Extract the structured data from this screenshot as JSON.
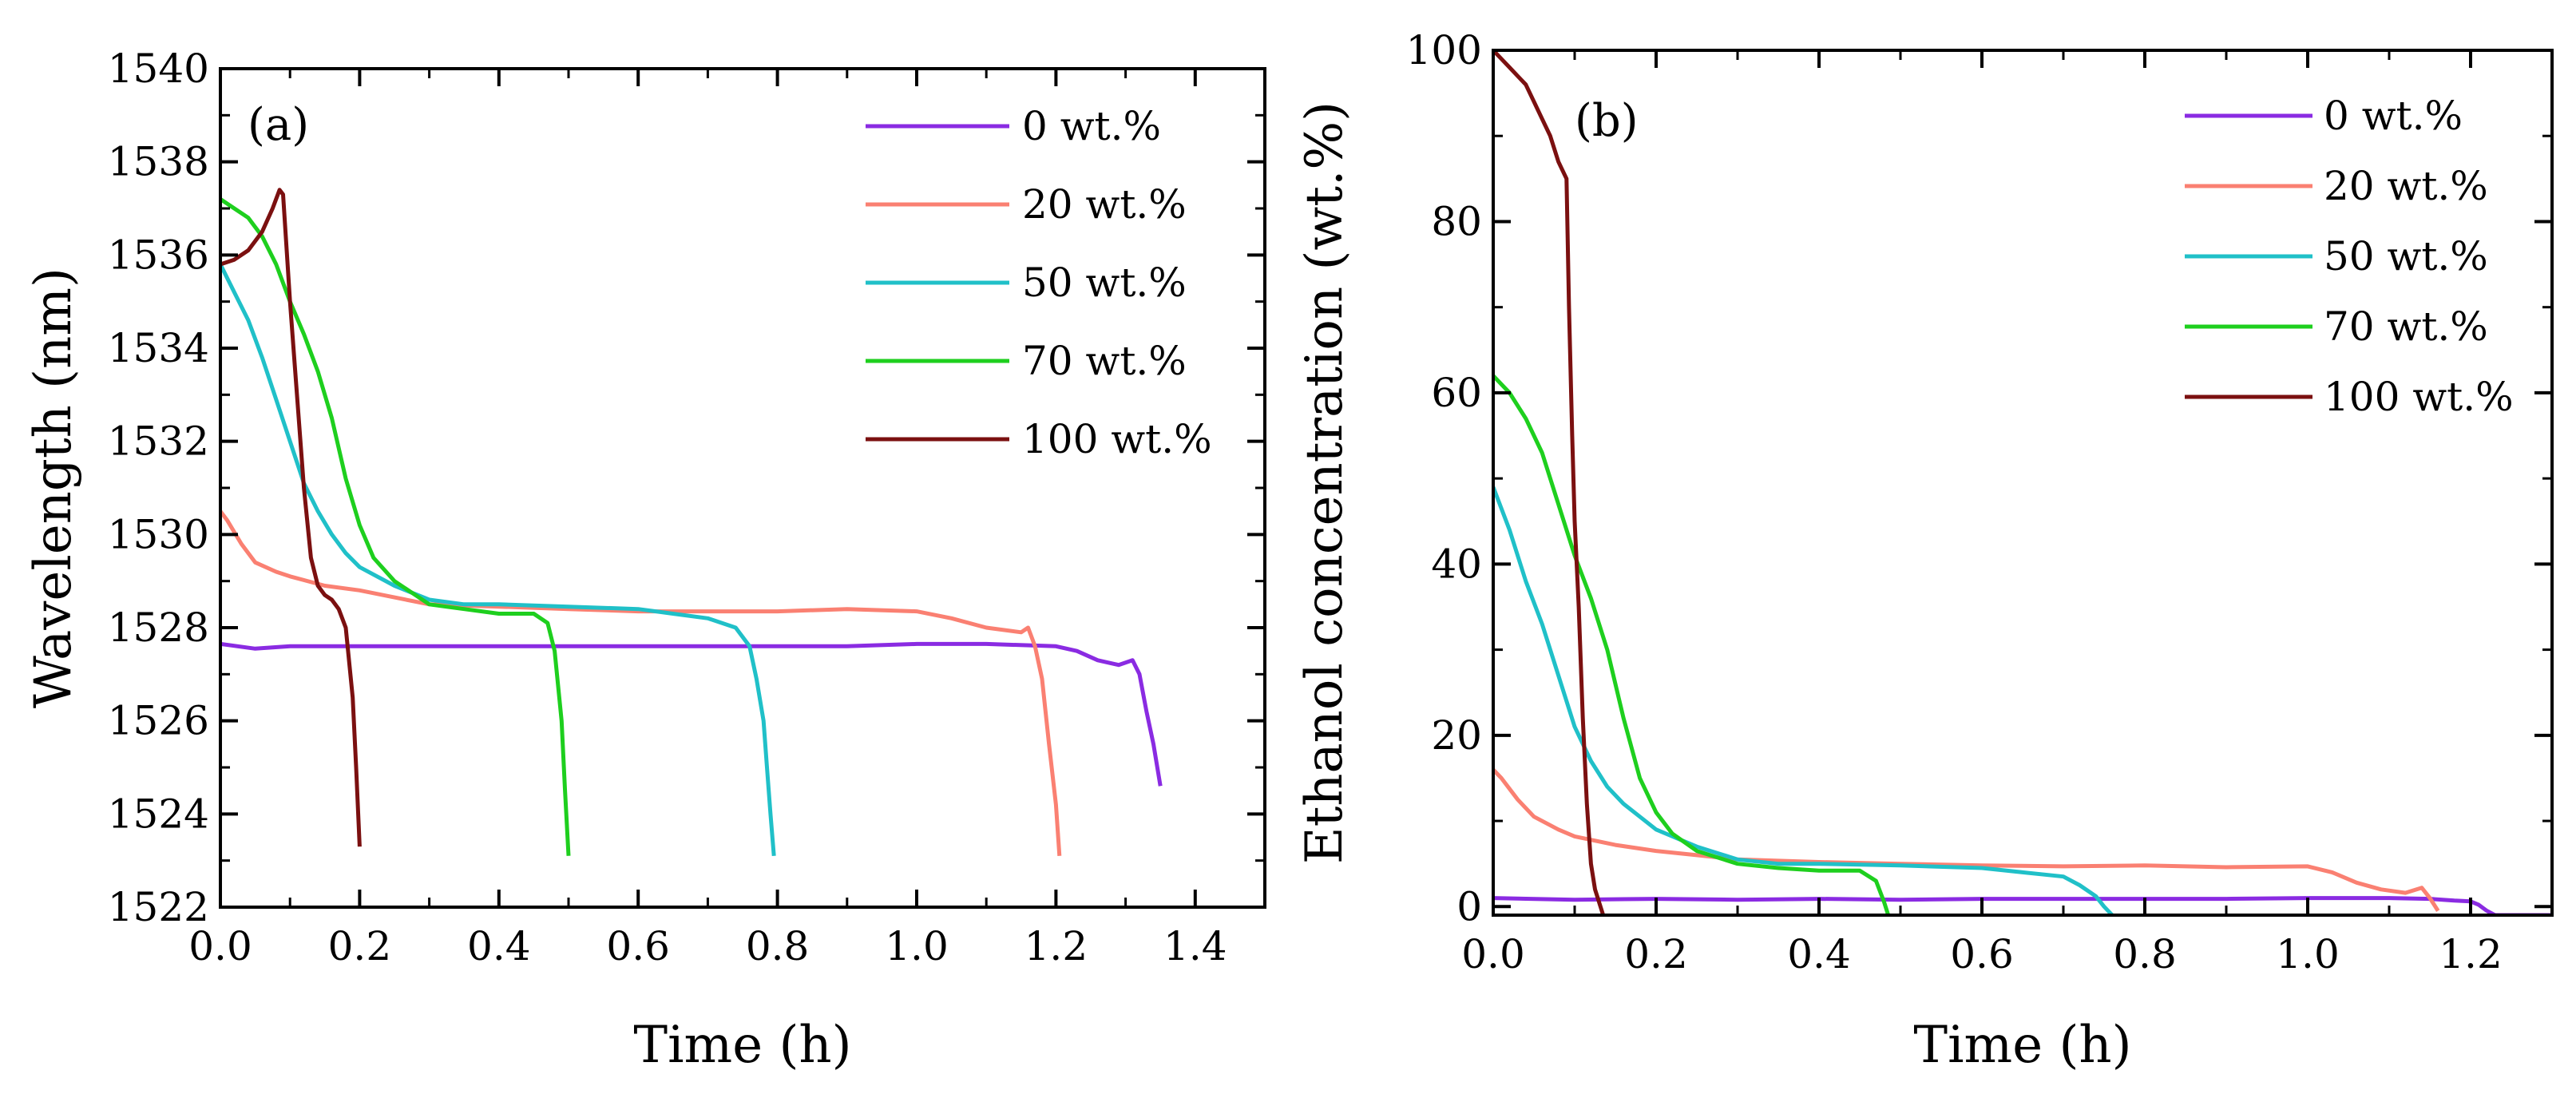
{
  "chart_data": [
    {
      "type": "line",
      "panel_label": "(a)",
      "xlabel": "Time (h)",
      "ylabel": "Wavelength (nm)",
      "xlim": [
        0.0,
        1.5
      ],
      "ylim": [
        1522,
        1540
      ],
      "x_ticks": [
        "0.0",
        "0.2",
        "0.4",
        "0.6",
        "0.8",
        "1.0",
        "1.2",
        "1.4"
      ],
      "y_ticks": [
        "1522",
        "1524",
        "1526",
        "1528",
        "1530",
        "1532",
        "1534",
        "1536",
        "1538",
        "1540"
      ],
      "legend_position": "top-right",
      "series": [
        {
          "name": "0 wt.%",
          "color": "#8a2be2",
          "points": [
            [
              0.0,
              1527.65
            ],
            [
              0.05,
              1527.55
            ],
            [
              0.1,
              1527.6
            ],
            [
              0.2,
              1527.6
            ],
            [
              0.3,
              1527.6
            ],
            [
              0.4,
              1527.6
            ],
            [
              0.5,
              1527.6
            ],
            [
              0.6,
              1527.6
            ],
            [
              0.7,
              1527.6
            ],
            [
              0.8,
              1527.6
            ],
            [
              0.9,
              1527.6
            ],
            [
              1.0,
              1527.65
            ],
            [
              1.1,
              1527.65
            ],
            [
              1.2,
              1527.6
            ],
            [
              1.23,
              1527.5
            ],
            [
              1.26,
              1527.3
            ],
            [
              1.29,
              1527.2
            ],
            [
              1.31,
              1527.3
            ],
            [
              1.32,
              1527.0
            ],
            [
              1.33,
              1526.2
            ],
            [
              1.34,
              1525.5
            ],
            [
              1.35,
              1524.6
            ]
          ]
        },
        {
          "name": "20 wt.%",
          "color": "#fa8072",
          "points": [
            [
              0.0,
              1530.5
            ],
            [
              0.01,
              1530.3
            ],
            [
              0.03,
              1529.8
            ],
            [
              0.05,
              1529.4
            ],
            [
              0.08,
              1529.2
            ],
            [
              0.1,
              1529.1
            ],
            [
              0.15,
              1528.9
            ],
            [
              0.2,
              1528.8
            ],
            [
              0.25,
              1528.65
            ],
            [
              0.3,
              1528.5
            ],
            [
              0.4,
              1528.45
            ],
            [
              0.5,
              1528.4
            ],
            [
              0.6,
              1528.35
            ],
            [
              0.7,
              1528.35
            ],
            [
              0.8,
              1528.35
            ],
            [
              0.9,
              1528.4
            ],
            [
              1.0,
              1528.35
            ],
            [
              1.05,
              1528.2
            ],
            [
              1.1,
              1528.0
            ],
            [
              1.15,
              1527.9
            ],
            [
              1.16,
              1528.0
            ],
            [
              1.17,
              1527.6
            ],
            [
              1.18,
              1526.9
            ],
            [
              1.19,
              1525.5
            ],
            [
              1.2,
              1524.2
            ],
            [
              1.205,
              1523.1
            ]
          ]
        },
        {
          "name": "50 wt.%",
          "color": "#20c0c8",
          "points": [
            [
              0.0,
              1535.8
            ],
            [
              0.02,
              1535.2
            ],
            [
              0.04,
              1534.6
            ],
            [
              0.06,
              1533.8
            ],
            [
              0.08,
              1532.9
            ],
            [
              0.1,
              1532.0
            ],
            [
              0.12,
              1531.1
            ],
            [
              0.14,
              1530.5
            ],
            [
              0.16,
              1530.0
            ],
            [
              0.18,
              1529.6
            ],
            [
              0.2,
              1529.3
            ],
            [
              0.25,
              1528.9
            ],
            [
              0.3,
              1528.6
            ],
            [
              0.35,
              1528.5
            ],
            [
              0.4,
              1528.5
            ],
            [
              0.5,
              1528.45
            ],
            [
              0.6,
              1528.4
            ],
            [
              0.65,
              1528.3
            ],
            [
              0.7,
              1528.2
            ],
            [
              0.74,
              1528.0
            ],
            [
              0.76,
              1527.6
            ],
            [
              0.77,
              1526.9
            ],
            [
              0.78,
              1526.0
            ],
            [
              0.785,
              1525.0
            ],
            [
              0.79,
              1524.0
            ],
            [
              0.795,
              1523.1
            ]
          ]
        },
        {
          "name": "70 wt.%",
          "color": "#1ecf1e",
          "points": [
            [
              0.0,
              1537.2
            ],
            [
              0.02,
              1537.0
            ],
            [
              0.04,
              1536.8
            ],
            [
              0.06,
              1536.4
            ],
            [
              0.08,
              1535.8
            ],
            [
              0.1,
              1535.0
            ],
            [
              0.12,
              1534.3
            ],
            [
              0.14,
              1533.5
            ],
            [
              0.16,
              1532.5
            ],
            [
              0.18,
              1531.2
            ],
            [
              0.2,
              1530.2
            ],
            [
              0.22,
              1529.5
            ],
            [
              0.25,
              1529.0
            ],
            [
              0.3,
              1528.5
            ],
            [
              0.35,
              1528.4
            ],
            [
              0.4,
              1528.3
            ],
            [
              0.45,
              1528.3
            ],
            [
              0.47,
              1528.1
            ],
            [
              0.48,
              1527.5
            ],
            [
              0.49,
              1526.0
            ],
            [
              0.495,
              1524.5
            ],
            [
              0.5,
              1523.1
            ]
          ]
        },
        {
          "name": "100 wt.%",
          "color": "#7b1010",
          "points": [
            [
              0.0,
              1535.8
            ],
            [
              0.02,
              1535.9
            ],
            [
              0.04,
              1536.1
            ],
            [
              0.06,
              1536.5
            ],
            [
              0.075,
              1537.0
            ],
            [
              0.085,
              1537.4
            ],
            [
              0.09,
              1537.3
            ],
            [
              0.1,
              1535.0
            ],
            [
              0.11,
              1533.0
            ],
            [
              0.12,
              1531.0
            ],
            [
              0.13,
              1529.5
            ],
            [
              0.14,
              1528.9
            ],
            [
              0.15,
              1528.7
            ],
            [
              0.16,
              1528.6
            ],
            [
              0.17,
              1528.4
            ],
            [
              0.18,
              1528.0
            ],
            [
              0.19,
              1526.5
            ],
            [
              0.195,
              1525.0
            ],
            [
              0.2,
              1523.3
            ]
          ]
        }
      ]
    },
    {
      "type": "line",
      "panel_label": "(b)",
      "xlabel": "Time (h)",
      "ylabel": "Ethanol concentration (wt.%)",
      "xlim": [
        0.0,
        1.3
      ],
      "ylim": [
        -1,
        100
      ],
      "x_ticks": [
        "0.0",
        "0.2",
        "0.4",
        "0.6",
        "0.8",
        "1.0",
        "1.2"
      ],
      "y_ticks": [
        "0",
        "20",
        "40",
        "60",
        "80",
        "100"
      ],
      "legend_position": "top-right",
      "series": [
        {
          "name": "0 wt.%",
          "color": "#8a2be2",
          "points": [
            [
              0.0,
              1.0
            ],
            [
              0.1,
              0.8
            ],
            [
              0.2,
              0.9
            ],
            [
              0.3,
              0.8
            ],
            [
              0.4,
              0.9
            ],
            [
              0.5,
              0.8
            ],
            [
              0.6,
              0.9
            ],
            [
              0.7,
              0.9
            ],
            [
              0.8,
              0.9
            ],
            [
              0.9,
              0.9
            ],
            [
              1.0,
              1.0
            ],
            [
              1.1,
              1.0
            ],
            [
              1.15,
              0.9
            ],
            [
              1.18,
              0.7
            ],
            [
              1.2,
              0.6
            ],
            [
              1.21,
              0.2
            ],
            [
              1.22,
              -0.5
            ],
            [
              1.23,
              -1.0
            ],
            [
              1.3,
              -1.0
            ]
          ]
        },
        {
          "name": "20 wt.%",
          "color": "#fa8072",
          "points": [
            [
              0.0,
              16.0
            ],
            [
              0.01,
              15.0
            ],
            [
              0.03,
              12.5
            ],
            [
              0.05,
              10.5
            ],
            [
              0.08,
              9.0
            ],
            [
              0.1,
              8.2
            ],
            [
              0.15,
              7.2
            ],
            [
              0.2,
              6.5
            ],
            [
              0.25,
              6.0
            ],
            [
              0.3,
              5.5
            ],
            [
              0.4,
              5.2
            ],
            [
              0.5,
              5.0
            ],
            [
              0.6,
              4.8
            ],
            [
              0.7,
              4.7
            ],
            [
              0.8,
              4.8
            ],
            [
              0.9,
              4.6
            ],
            [
              1.0,
              4.7
            ],
            [
              1.03,
              4.0
            ],
            [
              1.06,
              2.8
            ],
            [
              1.09,
              2.0
            ],
            [
              1.12,
              1.6
            ],
            [
              1.14,
              2.2
            ],
            [
              1.15,
              1.0
            ],
            [
              1.16,
              -0.5
            ]
          ]
        },
        {
          "name": "50 wt.%",
          "color": "#20c0c8",
          "points": [
            [
              0.0,
              49.0
            ],
            [
              0.02,
              44.0
            ],
            [
              0.04,
              38.0
            ],
            [
              0.06,
              33.0
            ],
            [
              0.08,
              27.0
            ],
            [
              0.1,
              21.0
            ],
            [
              0.12,
              17.0
            ],
            [
              0.14,
              14.0
            ],
            [
              0.16,
              12.0
            ],
            [
              0.18,
              10.5
            ],
            [
              0.2,
              9.0
            ],
            [
              0.25,
              7.0
            ],
            [
              0.3,
              5.5
            ],
            [
              0.35,
              5.0
            ],
            [
              0.4,
              5.0
            ],
            [
              0.5,
              4.8
            ],
            [
              0.6,
              4.5
            ],
            [
              0.65,
              4.0
            ],
            [
              0.7,
              3.5
            ],
            [
              0.72,
              2.5
            ],
            [
              0.74,
              1.2
            ],
            [
              0.75,
              0.0
            ],
            [
              0.76,
              -1.0
            ]
          ]
        },
        {
          "name": "70 wt.%",
          "color": "#1ecf1e",
          "points": [
            [
              0.0,
              62.0
            ],
            [
              0.02,
              60.0
            ],
            [
              0.04,
              57.0
            ],
            [
              0.06,
              53.0
            ],
            [
              0.08,
              47.0
            ],
            [
              0.1,
              41.0
            ],
            [
              0.12,
              36.0
            ],
            [
              0.14,
              30.0
            ],
            [
              0.16,
              22.0
            ],
            [
              0.18,
              15.0
            ],
            [
              0.2,
              11.0
            ],
            [
              0.22,
              8.5
            ],
            [
              0.25,
              6.5
            ],
            [
              0.3,
              5.0
            ],
            [
              0.35,
              4.5
            ],
            [
              0.4,
              4.2
            ],
            [
              0.45,
              4.2
            ],
            [
              0.47,
              3.0
            ],
            [
              0.48,
              0.5
            ],
            [
              0.485,
              -1.0
            ]
          ]
        },
        {
          "name": "100 wt.%",
          "color": "#7b1010",
          "points": [
            [
              0.0,
              100.0
            ],
            [
              0.01,
              99.0
            ],
            [
              0.02,
              98.0
            ],
            [
              0.03,
              97.0
            ],
            [
              0.04,
              96.0
            ],
            [
              0.05,
              94.0
            ],
            [
              0.06,
              92.0
            ],
            [
              0.07,
              90.0
            ],
            [
              0.08,
              87.0
            ],
            [
              0.09,
              85.0
            ],
            [
              0.093,
              70.0
            ],
            [
              0.097,
              55.0
            ],
            [
              0.1,
              45.0
            ],
            [
              0.105,
              35.0
            ],
            [
              0.11,
              22.0
            ],
            [
              0.115,
              12.0
            ],
            [
              0.12,
              5.0
            ],
            [
              0.125,
              2.0
            ],
            [
              0.13,
              0.5
            ],
            [
              0.135,
              -1.0
            ]
          ]
        }
      ]
    }
  ]
}
